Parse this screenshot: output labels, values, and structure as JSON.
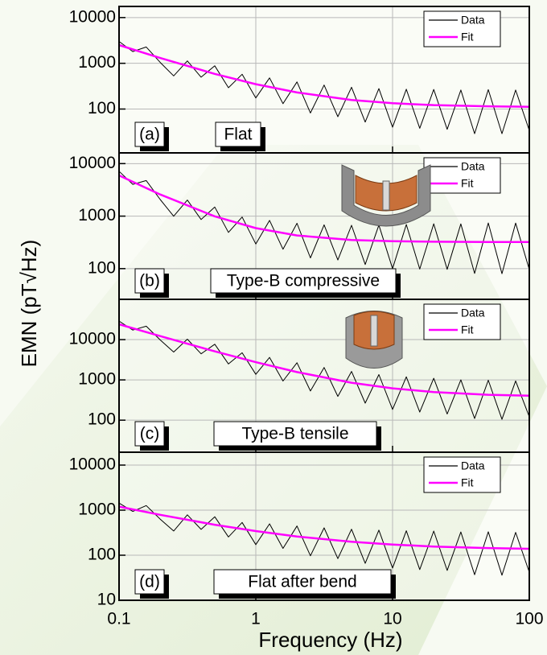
{
  "figure": {
    "ylabel": "EMN (pT√Hz)",
    "xlabel": "Frequency (Hz)"
  },
  "chart_data": [
    {
      "type": "line",
      "panel_label": "(a)",
      "annotation": "Flat",
      "xlim": [
        0.1,
        100
      ],
      "xticks": [
        0.1,
        1,
        10,
        100
      ],
      "ylim": [
        11,
        17500
      ],
      "yticks": [
        100,
        1000,
        10000
      ],
      "log_x": true,
      "log_y": true,
      "grid": true,
      "legend": "upper right",
      "series": [
        {
          "name": "Data",
          "color": "#000000",
          "x": [
            0.1,
            0.126,
            0.158,
            0.2,
            0.251,
            0.316,
            0.398,
            0.501,
            0.631,
            0.794,
            1,
            1.26,
            1.58,
            2,
            2.51,
            3.16,
            3.98,
            5.01,
            6.31,
            7.94,
            10,
            12.6,
            15.8,
            20,
            25.1,
            31.6,
            39.8,
            50.1,
            63.1,
            79.4,
            100
          ],
          "values": [
            3000,
            1806,
            2272,
            1044,
            531,
            1126,
            497,
            881,
            293,
            575,
            175,
            480,
            131,
            391,
            82,
            335,
            68,
            300,
            52,
            280,
            40,
            271,
            38,
            268,
            36,
            260,
            29,
            265,
            29,
            260,
            34
          ]
        },
        {
          "name": "Fit",
          "color": "#ff00ff",
          "x": [
            0.1,
            0.2,
            0.5,
            1,
            2,
            5,
            10,
            20,
            50,
            100
          ],
          "values": [
            2500,
            1305,
            588,
            349,
            230,
            158,
            134,
            122,
            115,
            112
          ]
        }
      ]
    },
    {
      "type": "line",
      "panel_label": "(b)",
      "annotation": "Type-B compressive",
      "xlim": [
        0.1,
        100
      ],
      "xticks": [
        0.1,
        1,
        10,
        100
      ],
      "ylim": [
        26,
        16000
      ],
      "yticks": [
        100,
        1000,
        10000
      ],
      "log_x": true,
      "log_y": true,
      "grid": true,
      "legend": "upper right",
      "series": [
        {
          "name": "Data",
          "color": "#000000",
          "x": [
            0.1,
            0.126,
            0.158,
            0.2,
            0.251,
            0.316,
            0.398,
            0.501,
            0.631,
            0.794,
            1,
            1.26,
            1.58,
            2,
            2.51,
            3.16,
            3.98,
            5.01,
            6.31,
            7.94,
            10,
            12.6,
            15.8,
            20,
            25.1,
            31.6,
            39.8,
            50.1,
            63.1,
            79.4,
            100
          ],
          "values": [
            7156,
            4030,
            4757,
            2068,
            996,
            2020,
            861,
            1488,
            490,
            960,
            295,
            830,
            234,
            729,
            160,
            682,
            146,
            669,
            120,
            676,
            100,
            693,
            98,
            715,
            97,
            711,
            81,
            741,
            80,
            738,
            96
          ]
        },
        {
          "name": "Fit",
          "color": "#ff00ff",
          "x": [
            0.1,
            0.2,
            0.5,
            1,
            2,
            5,
            10,
            20,
            50,
            100
          ],
          "values": [
            5963,
            2585,
            992,
            590,
            429,
            352,
            333,
            325,
            322,
            321
          ]
        }
      ]
    },
    {
      "type": "line",
      "panel_label": "(c)",
      "annotation": "Type-B tensile",
      "xlim": [
        0.1,
        100
      ],
      "xticks": [
        0.1,
        1,
        10,
        100
      ],
      "ylim": [
        16,
        100000
      ],
      "yticks": [
        100,
        1000,
        10000
      ],
      "log_x": true,
      "log_y": true,
      "grid": true,
      "legend": "upper right",
      "series": [
        {
          "name": "Data",
          "color": "#000000",
          "x": [
            0.1,
            0.126,
            0.158,
            0.2,
            0.251,
            0.316,
            0.398,
            0.501,
            0.631,
            0.794,
            1,
            1.26,
            1.58,
            2,
            2.51,
            3.16,
            3.98,
            5.01,
            6.31,
            7.94,
            10,
            12.6,
            15.8,
            20,
            25.1,
            31.6,
            39.8,
            50.1,
            63.1,
            79.4,
            100
          ],
          "values": [
            28896,
            17271,
            21532,
            9784,
            4911,
            10244,
            4435,
            7665,
            2482,
            4711,
            1375,
            3618,
            940,
            2661,
            530,
            2034,
            390,
            1621,
            265,
            1356,
            185,
            1193,
            159,
            1098,
            142,
            1001,
            110,
            982,
            105,
            943,
            121
          ]
        },
        {
          "name": "Fit",
          "color": "#ff00ff",
          "x": [
            0.1,
            0.2,
            0.5,
            1,
            2,
            5,
            10,
            20,
            50,
            100
          ],
          "values": [
            24080,
            12230,
            5110,
            2750,
            1565,
            853,
            617,
            499,
            427,
            404
          ]
        }
      ]
    },
    {
      "type": "line",
      "panel_label": "(d)",
      "annotation": "Flat after bend",
      "xlim": [
        0.1,
        100
      ],
      "xticks": [
        0.1,
        1,
        10,
        100
      ],
      "ylim": [
        10,
        19300
      ],
      "yticks": [
        10,
        100,
        1000,
        10000
      ],
      "log_x": true,
      "log_y": true,
      "grid": true,
      "legend": "upper right",
      "series": [
        {
          "name": "Data",
          "color": "#000000",
          "x": [
            0.1,
            0.126,
            0.158,
            0.2,
            0.251,
            0.316,
            0.398,
            0.501,
            0.631,
            0.794,
            1,
            1.26,
            1.58,
            2,
            2.51,
            3.16,
            3.98,
            5.01,
            6.31,
            7.94,
            10,
            12.6,
            15.8,
            20,
            25.1,
            31.6,
            39.8,
            50.1,
            63.1,
            79.4,
            100
          ],
          "values": [
            1436,
            935,
            1264,
            630,
            345,
            789,
            375,
            713,
            254,
            532,
            172,
            498,
            142,
            444,
            97,
            405,
            84,
            378,
            66,
            360,
            52,
            349,
            48,
            343,
            46,
            328,
            37,
            331,
            36,
            322,
            42
          ]
        },
        {
          "name": "Fit",
          "color": "#ff00ff",
          "x": [
            0.1,
            0.2,
            0.5,
            1,
            2,
            5,
            10,
            20,
            50,
            100
          ],
          "values": [
            1197,
            788,
            475,
            343,
            261,
            199,
            173,
            156,
            144,
            139
          ]
        }
      ]
    }
  ]
}
